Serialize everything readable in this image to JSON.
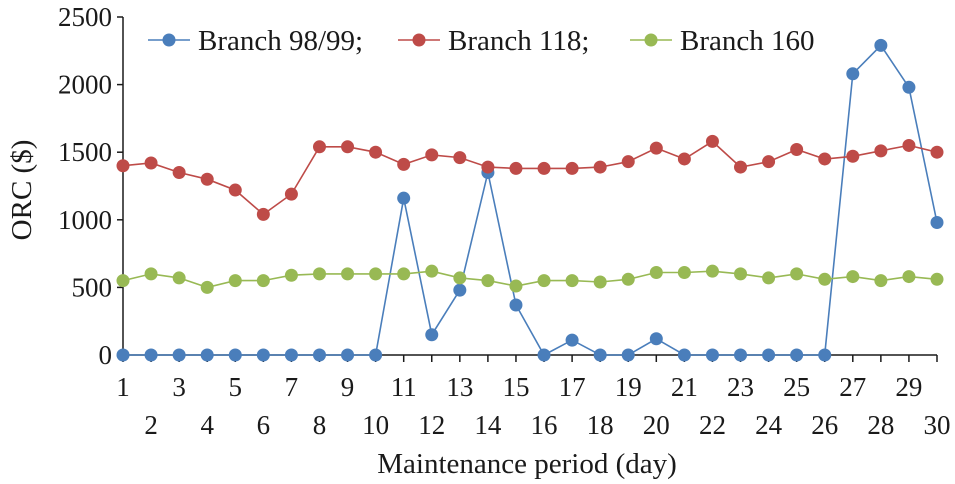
{
  "chart_data": {
    "type": "line",
    "xlabel": "Maintenance period (day)",
    "ylabel": "ORC ($)",
    "ylim": [
      0,
      2500
    ],
    "yticks": [
      0,
      500,
      1000,
      1500,
      2000,
      2500
    ],
    "x": [
      1,
      2,
      3,
      4,
      5,
      6,
      7,
      8,
      9,
      10,
      11,
      12,
      13,
      14,
      15,
      16,
      17,
      18,
      19,
      20,
      21,
      22,
      23,
      24,
      25,
      26,
      27,
      28,
      29,
      30
    ],
    "x_tick_labels": [
      "1",
      "2",
      "3",
      "4",
      "5",
      "6",
      "7",
      "8",
      "9",
      "10",
      "11",
      "12",
      "13",
      "14",
      "15",
      "16",
      "17",
      "18",
      "19",
      "20",
      "21",
      "22",
      "23",
      "24",
      "25",
      "26",
      "27",
      "28",
      "29",
      "30"
    ],
    "grid": false,
    "legend_position": "top",
    "series": [
      {
        "name": "Branch 98/99;",
        "color": "#4a7ebb",
        "values": [
          0,
          0,
          0,
          0,
          0,
          0,
          0,
          0,
          0,
          0,
          1160,
          150,
          480,
          1350,
          370,
          0,
          110,
          0,
          0,
          120,
          0,
          0,
          0,
          0,
          0,
          0,
          2080,
          2290,
          1980,
          980
        ]
      },
      {
        "name": "Branch 118;",
        "color": "#be4b48",
        "values": [
          1400,
          1420,
          1350,
          1300,
          1220,
          1040,
          1190,
          1540,
          1540,
          1500,
          1410,
          1480,
          1460,
          1390,
          1380,
          1380,
          1380,
          1390,
          1430,
          1530,
          1450,
          1580,
          1390,
          1430,
          1520,
          1450,
          1470,
          1510,
          1550,
          1500
        ]
      },
      {
        "name": "Branch 160",
        "color": "#98b954",
        "values": [
          550,
          600,
          570,
          500,
          550,
          550,
          590,
          600,
          600,
          600,
          600,
          620,
          570,
          550,
          510,
          550,
          550,
          540,
          560,
          610,
          610,
          620,
          600,
          570,
          600,
          560,
          580,
          550,
          580,
          560
        ]
      }
    ]
  }
}
